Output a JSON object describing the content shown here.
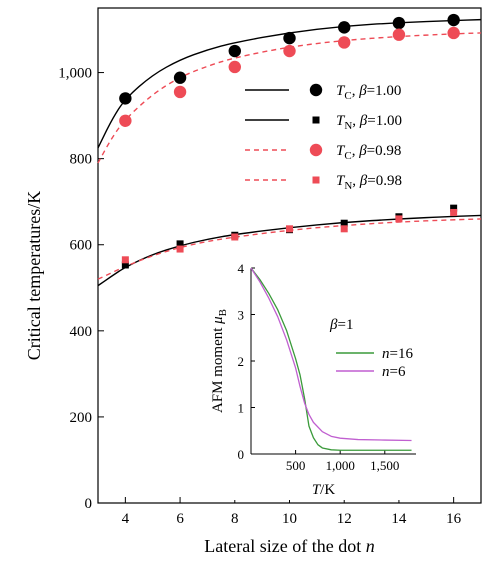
{
  "chart_data": [
    {
      "type": "scatter",
      "xlabel": "Lateral size of the dot n",
      "ylabel": "Critical temperatures/K",
      "xlim": [
        3,
        17
      ],
      "ylim": [
        0,
        1150
      ],
      "xticks": [
        "4",
        "6",
        "8",
        "10",
        "12",
        "14",
        "16"
      ],
      "yticks": [
        "0",
        "200",
        "400",
        "600",
        "800",
        "1,000"
      ],
      "series": [
        {
          "name": "T_C, β=1.00",
          "marker": "circle",
          "color": "#000000",
          "x": [
            4,
            6,
            8,
            10,
            12,
            14,
            16
          ],
          "y": [
            940,
            988,
            1050,
            1080,
            1105,
            1115,
            1122
          ]
        },
        {
          "name": "T_N, β=1.00",
          "marker": "square",
          "color": "#000000",
          "x": [
            4,
            6,
            8,
            10,
            12,
            14,
            16
          ],
          "y": [
            553,
            602,
            622,
            635,
            650,
            665,
            685
          ]
        },
        {
          "name": "T_C, β=0.98",
          "marker": "circle",
          "color": "#ee4b56",
          "x": [
            4,
            6,
            8,
            10,
            12,
            14,
            16
          ],
          "y": [
            888,
            955,
            1013,
            1050,
            1070,
            1088,
            1092
          ]
        },
        {
          "name": "T_N, β=0.98",
          "marker": "square",
          "color": "#ee4b56",
          "x": [
            4,
            6,
            8,
            10,
            12,
            14,
            16
          ],
          "y": [
            565,
            590,
            618,
            637,
            637,
            660,
            675
          ]
        }
      ],
      "fits": [
        {
          "series": "T_C, β=1.00",
          "style": "solid",
          "color": "#000000",
          "x": [
            3,
            3.5,
            4,
            5,
            6,
            7,
            8,
            10,
            12,
            14,
            16,
            17
          ],
          "y": [
            825,
            890,
            940,
            995,
            1030,
            1053,
            1070,
            1093,
            1108,
            1116,
            1121,
            1123
          ]
        },
        {
          "series": "T_N, β=1.00",
          "style": "solid",
          "color": "#000000",
          "x": [
            3,
            3.5,
            4,
            5,
            6,
            7,
            8,
            10,
            12,
            14,
            16,
            17
          ],
          "y": [
            505,
            527,
            548,
            578,
            598,
            613,
            624,
            640,
            652,
            660,
            666,
            668
          ]
        },
        {
          "series": "T_C, β=0.98",
          "style": "dashed",
          "color": "#ee4b56",
          "x": [
            3,
            3.5,
            4,
            5,
            6,
            7,
            8,
            10,
            12,
            14,
            16,
            17
          ],
          "y": [
            790,
            848,
            892,
            950,
            990,
            1015,
            1035,
            1060,
            1075,
            1084,
            1090,
            1092
          ]
        },
        {
          "series": "T_N, β=0.98",
          "style": "dashed",
          "color": "#ee4b56",
          "x": [
            3,
            3.5,
            4,
            5,
            6,
            7,
            8,
            10,
            12,
            14,
            16,
            17
          ],
          "y": [
            520,
            535,
            550,
            575,
            594,
            608,
            618,
            634,
            645,
            653,
            658,
            660
          ]
        }
      ],
      "legend": {
        "placement": "top-right",
        "entries": [
          {
            "label_base": "T",
            "label_sub": "C",
            "label_rest": ", β=1.00",
            "line": "solid",
            "marker": "circle",
            "color": "#000000"
          },
          {
            "label_base": "T",
            "label_sub": "N",
            "label_rest": ", β=1.00",
            "line": "solid",
            "marker": "square",
            "color": "#000000"
          },
          {
            "label_base": "T",
            "label_sub": "C",
            "label_rest": ", β=0.98",
            "line": "dashed",
            "marker": "circle",
            "color": "#ee4b56"
          },
          {
            "label_base": "T",
            "label_sub": "N",
            "label_rest": ", β=0.98",
            "line": "dashed",
            "marker": "square",
            "color": "#ee4b56"
          }
        ]
      }
    },
    {
      "type": "line",
      "xlabel": "T/K",
      "ylabel": "AFM moment μB",
      "xlim": [
        0,
        1850
      ],
      "ylim": [
        0,
        4
      ],
      "xticks": [
        "500",
        "1,000",
        "1,500"
      ],
      "yticks": [
        "0",
        "1",
        "2",
        "3",
        "4"
      ],
      "annotation": "β=1",
      "series": [
        {
          "name": "n=16",
          "color": "#3a9a3a",
          "x": [
            0,
            100,
            200,
            300,
            400,
            500,
            550,
            600,
            650,
            700,
            750,
            800,
            900,
            1000,
            1200,
            1500,
            1800
          ],
          "y": [
            4.0,
            3.75,
            3.45,
            3.1,
            2.65,
            2.05,
            1.7,
            1.2,
            0.6,
            0.35,
            0.2,
            0.13,
            0.09,
            0.08,
            0.08,
            0.08,
            0.08
          ]
        },
        {
          "name": "n=6",
          "color": "#c05fd0",
          "x": [
            0,
            100,
            200,
            300,
            400,
            500,
            550,
            600,
            650,
            700,
            800,
            900,
            1000,
            1200,
            1500,
            1800
          ],
          "y": [
            4.0,
            3.7,
            3.35,
            2.95,
            2.45,
            1.85,
            1.45,
            1.1,
            0.85,
            0.68,
            0.48,
            0.38,
            0.34,
            0.31,
            0.3,
            0.29
          ]
        }
      ]
    }
  ]
}
